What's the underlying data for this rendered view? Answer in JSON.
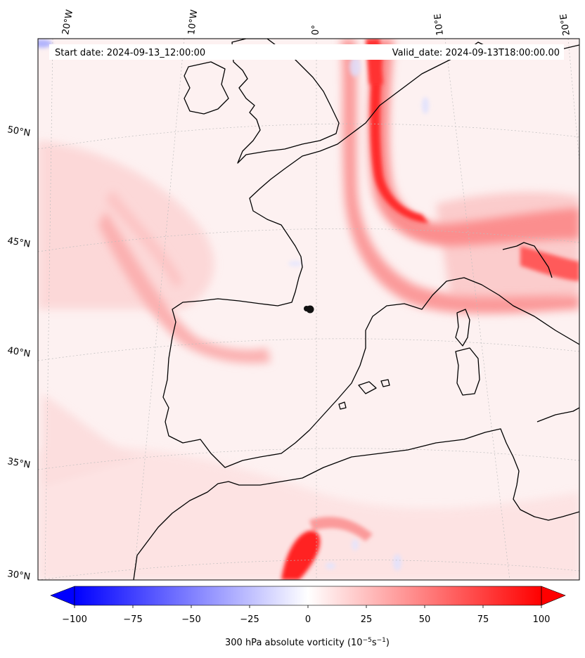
{
  "header": {
    "start_date": "Start date: 2024-09-13_12:00:00",
    "valid_date": "Valid_date: 2024-09-13T18:00:00.00"
  },
  "lon_labels": [
    "20°W",
    "10°W",
    "0°",
    "10°E",
    "20°E"
  ],
  "lat_labels": [
    "50°N",
    "45°N",
    "40°N",
    "35°N",
    "30°N"
  ],
  "colorbar": {
    "ticks": [
      "−100",
      "−75",
      "−50",
      "−25",
      "0",
      "25",
      "50",
      "75",
      "100"
    ],
    "label_prefix": "300 hPa absolute vorticity (10",
    "label_exp1": "−5",
    "label_mid": "s",
    "label_exp2": "−1",
    "label_suffix": ")",
    "min": -100,
    "max": 100,
    "low_color": "#0000ff",
    "mid_color": "#ffffff",
    "high_color": "#ff0000"
  },
  "map": {
    "variable": "300 hPa absolute vorticity",
    "projection": "conic",
    "background_fill": "#fdf2f2",
    "coastline_color": "#000000",
    "gridline_color": "#c8c8c8"
  }
}
